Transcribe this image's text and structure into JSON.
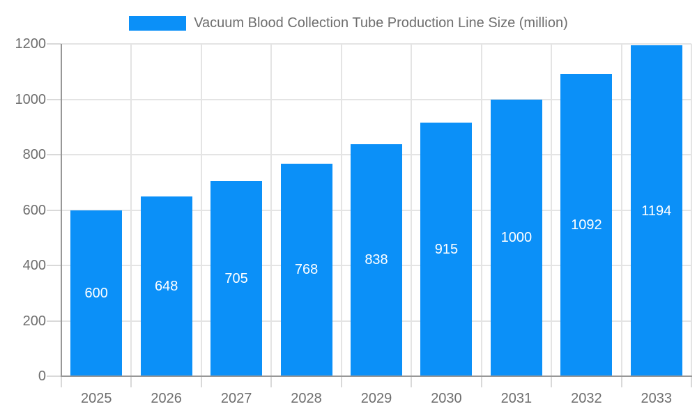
{
  "chart_data": {
    "type": "bar",
    "title": "Vacuum Blood Collection Tube Production Line Size (million)",
    "legend": {
      "position": "top",
      "entries": [
        "Vacuum Blood Collection Tube Production Line Size (million)"
      ]
    },
    "categories": [
      "2025",
      "2026",
      "2027",
      "2028",
      "2029",
      "2030",
      "2031",
      "2032",
      "2033"
    ],
    "values": [
      600,
      648,
      705,
      768,
      838,
      915,
      1000,
      1092,
      1194
    ],
    "xlabel": "",
    "ylabel": "",
    "ylim": [
      0,
      1200
    ],
    "yticks": [
      0,
      200,
      400,
      600,
      800,
      1000,
      1200
    ],
    "grid": true,
    "value_labels": "inside-center",
    "colors": {
      "bar": "#0b90f8",
      "value_label": "#ffffff",
      "axis_text": "#6e6e6e",
      "axis_line": "#979797",
      "gridline": "#e4e4e4",
      "tick_line": "#d9d9d9",
      "background": "#ffffff"
    }
  }
}
